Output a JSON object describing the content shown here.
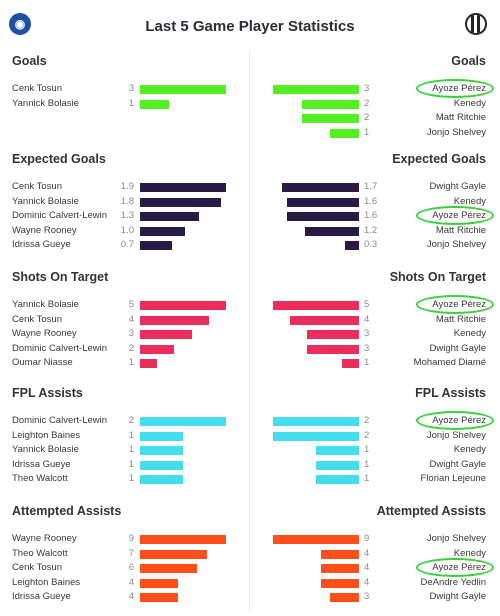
{
  "header": {
    "title": "Last 5 Game Player Statistics",
    "left_logo_icon": "shield-logo-icon",
    "right_logo_icon": "striped-crest-logo-icon"
  },
  "colors": {
    "goals": "#55ee22",
    "expected_goals": "#281c46",
    "shots_on_target": "#ea2d5c",
    "fpl_assists": "#44ddee",
    "attempted_assists": "#fe4f1a",
    "highlight_circle": "#3ad23a"
  },
  "sections": [
    {
      "key": "goals",
      "title_left": "Goals",
      "title_right": "Goals",
      "max": 3,
      "left": [
        {
          "name": "Cenk Tosun",
          "value": 3
        },
        {
          "name": "Yannick Bolasie",
          "value": 1
        }
      ],
      "right": [
        {
          "name": "Ayoze Pérez",
          "value": 3,
          "highlighted": true
        },
        {
          "name": "Kenedy",
          "value": 2
        },
        {
          "name": "Matt Ritchie",
          "value": 2
        },
        {
          "name": "Jonjo Shelvey",
          "value": 1
        }
      ]
    },
    {
      "key": "expected_goals",
      "title_left": "Expected Goals",
      "title_right": "Expected Goals",
      "max": 1.9,
      "left": [
        {
          "name": "Cenk Tosun",
          "value": 1.9,
          "label": "1.9"
        },
        {
          "name": "Yannick Bolasie",
          "value": 1.8,
          "label": "1.8"
        },
        {
          "name": "Dominic Calvert-Lewin",
          "value": 1.3,
          "label": "1.3"
        },
        {
          "name": "Wayne Rooney",
          "value": 1.0,
          "label": "1.0"
        },
        {
          "name": "Idrissa Gueye",
          "value": 0.7,
          "label": "0.7"
        }
      ],
      "right": [
        {
          "name": "Dwight Gayle",
          "value": 1.7,
          "label": "1.7"
        },
        {
          "name": "Kenedy",
          "value": 1.6,
          "label": "1.6"
        },
        {
          "name": "Ayoze Pérez",
          "value": 1.6,
          "label": "1.6",
          "highlighted": true
        },
        {
          "name": "Matt Ritchie",
          "value": 1.2,
          "label": "1.2"
        },
        {
          "name": "Jonjo Shelvey",
          "value": 0.3,
          "label": "0.3"
        }
      ]
    },
    {
      "key": "shots_on_target",
      "title_left": "Shots On Target",
      "title_right": "Shots On Target",
      "max": 5,
      "left": [
        {
          "name": "Yannick Bolasie",
          "value": 5
        },
        {
          "name": "Cenk Tosun",
          "value": 4
        },
        {
          "name": "Wayne Rooney",
          "value": 3
        },
        {
          "name": "Dominic Calvert-Lewin",
          "value": 2
        },
        {
          "name": "Oumar Niasse",
          "value": 1
        }
      ],
      "right": [
        {
          "name": "Ayoze Pérez",
          "value": 5,
          "highlighted": true
        },
        {
          "name": "Matt Ritchie",
          "value": 4
        },
        {
          "name": "Kenedy",
          "value": 3
        },
        {
          "name": "Dwight Gayle",
          "value": 3
        },
        {
          "name": "Mohamed Diamé",
          "value": 1
        }
      ]
    },
    {
      "key": "fpl_assists",
      "title_left": "FPL Assists",
      "title_right": "FPL Assists",
      "max": 2,
      "left": [
        {
          "name": "Dominic Calvert-Lewin",
          "value": 2
        },
        {
          "name": "Leighton Baines",
          "value": 1
        },
        {
          "name": "Yannick Bolasie",
          "value": 1
        },
        {
          "name": "Idrissa Gueye",
          "value": 1
        },
        {
          "name": "Theo Walcott",
          "value": 1
        }
      ],
      "right": [
        {
          "name": "Ayoze Pérez",
          "value": 2,
          "highlighted": true
        },
        {
          "name": "Jonjo Shelvey",
          "value": 2
        },
        {
          "name": "Kenedy",
          "value": 1
        },
        {
          "name": "Dwight Gayle",
          "value": 1
        },
        {
          "name": "Florian Lejeune",
          "value": 1
        }
      ]
    },
    {
      "key": "attempted_assists",
      "title_left": "Attempted Assists",
      "title_right": "Attempted Assists",
      "max": 9,
      "left": [
        {
          "name": "Wayne Rooney",
          "value": 9
        },
        {
          "name": "Theo Walcott",
          "value": 7
        },
        {
          "name": "Cenk Tosun",
          "value": 6
        },
        {
          "name": "Leighton Baines",
          "value": 4
        },
        {
          "name": "Idrissa Gueye",
          "value": 4
        }
      ],
      "right": [
        {
          "name": "Jonjo Shelvey",
          "value": 9
        },
        {
          "name": "Kenedy",
          "value": 4
        },
        {
          "name": "Ayoze Pérez",
          "value": 4,
          "highlighted": true
        },
        {
          "name": "DeAndre Yedlin",
          "value": 4
        },
        {
          "name": "Dwight Gayle",
          "value": 3
        }
      ]
    }
  ]
}
